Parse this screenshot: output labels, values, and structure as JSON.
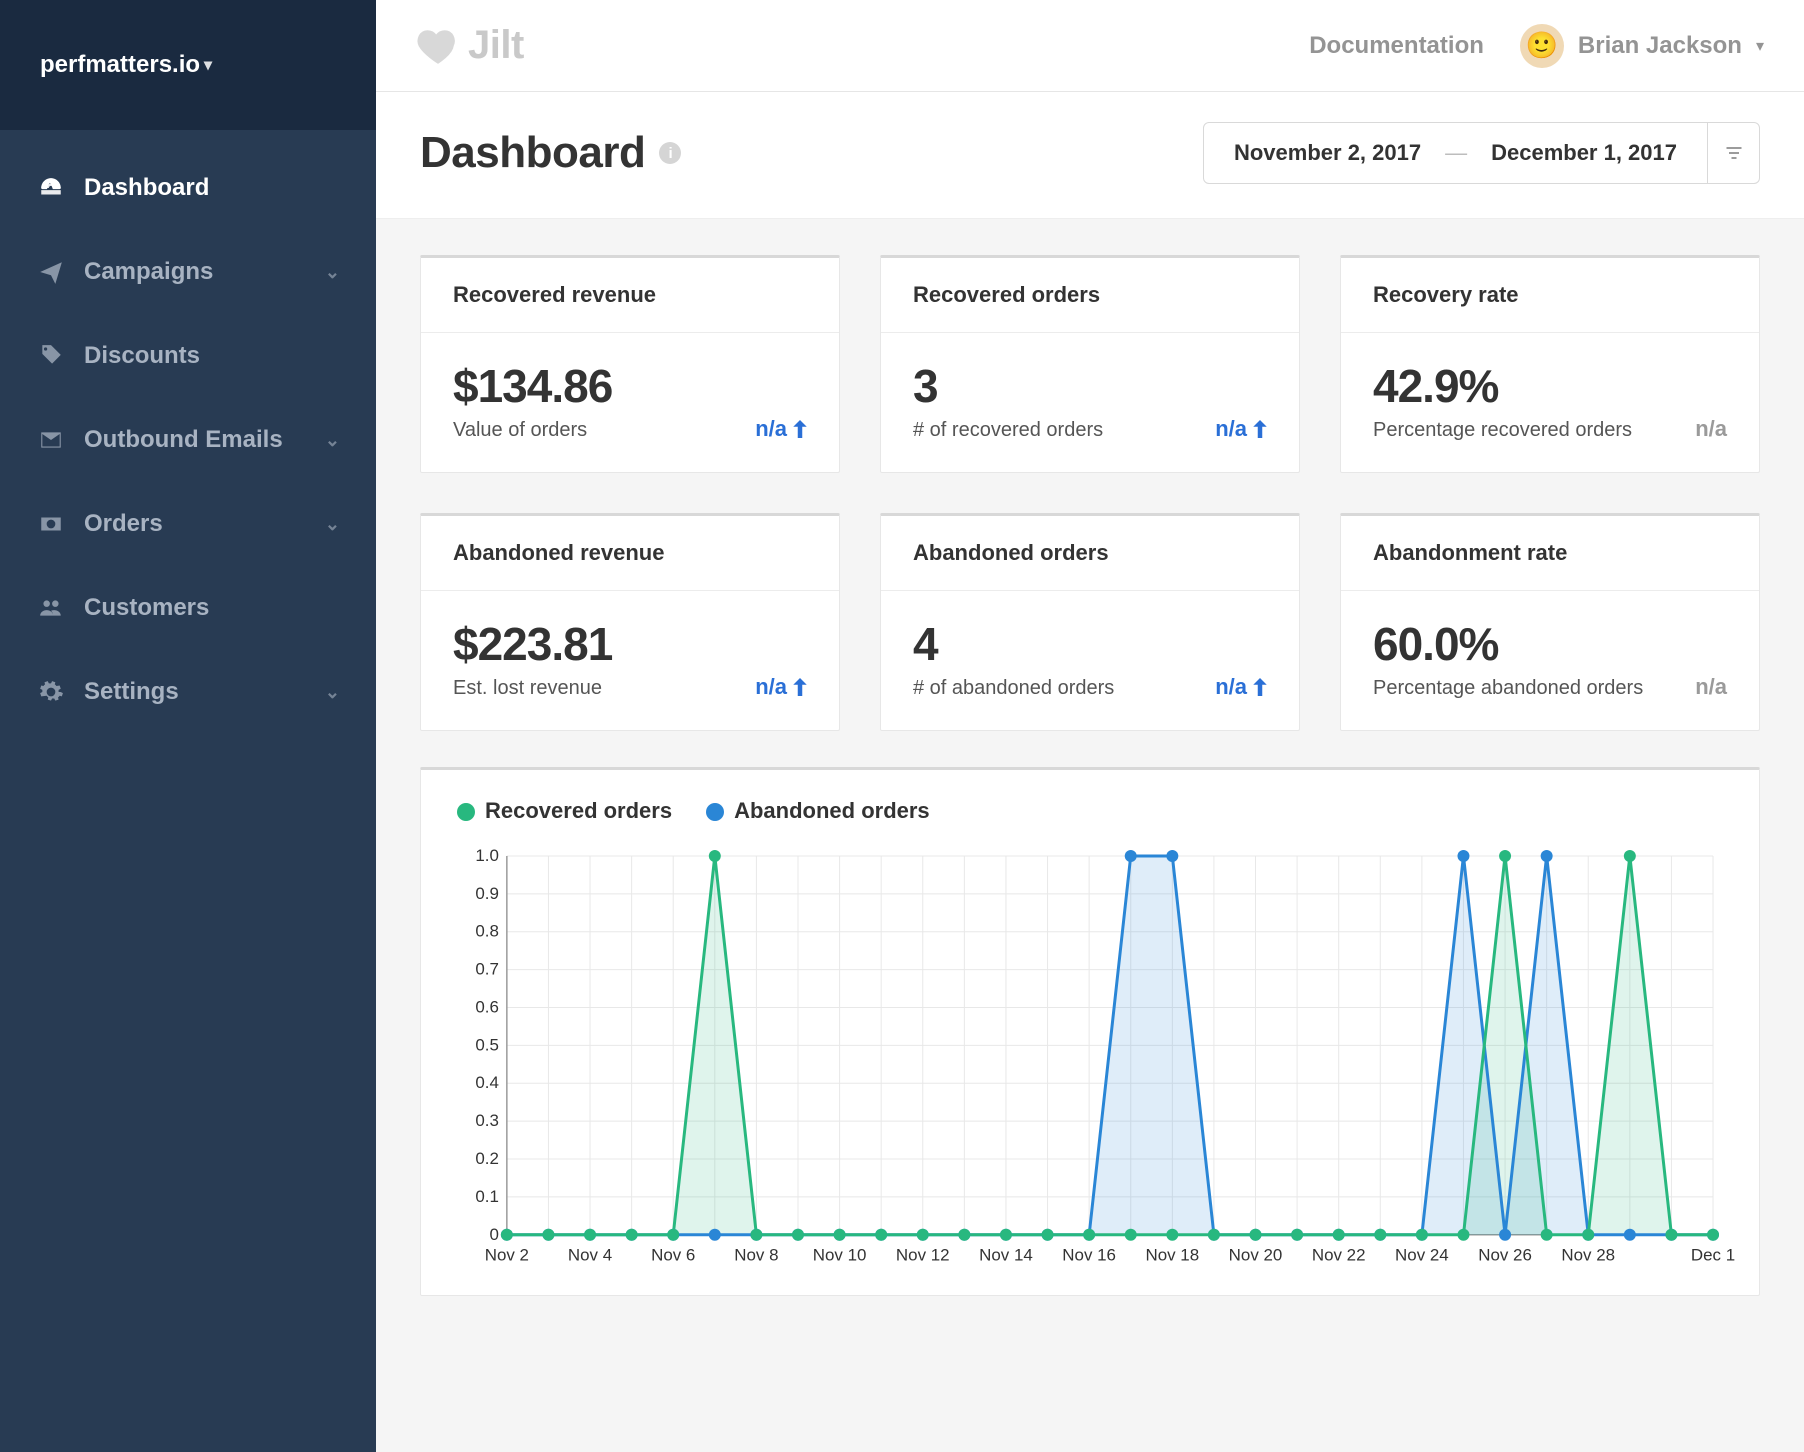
{
  "org": {
    "name": "perfmatters.io"
  },
  "nav": {
    "items": [
      {
        "label": "Dashboard",
        "icon": "dashboard",
        "active": true,
        "expandable": false
      },
      {
        "label": "Campaigns",
        "icon": "plane",
        "active": false,
        "expandable": true
      },
      {
        "label": "Discounts",
        "icon": "tag",
        "active": false,
        "expandable": false
      },
      {
        "label": "Outbound Emails",
        "icon": "mail",
        "active": false,
        "expandable": true
      },
      {
        "label": "Orders",
        "icon": "cash",
        "active": false,
        "expandable": true
      },
      {
        "label": "Customers",
        "icon": "users",
        "active": false,
        "expandable": false
      },
      {
        "label": "Settings",
        "icon": "gear",
        "active": false,
        "expandable": true
      }
    ]
  },
  "topbar": {
    "brand": "Jilt",
    "doc_label": "Documentation",
    "user_name": "Brian Jackson"
  },
  "header": {
    "title": "Dashboard",
    "date_from": "November 2, 2017",
    "date_to": "December 1, 2017"
  },
  "cards": [
    {
      "title": "Recovered revenue",
      "value": "$134.86",
      "sub": "Value of orders",
      "delta": "n/a",
      "arrow": true
    },
    {
      "title": "Recovered orders",
      "value": "3",
      "sub": "# of recovered orders",
      "delta": "n/a",
      "arrow": true
    },
    {
      "title": "Recovery rate",
      "value": "42.9%",
      "sub": "Percentage recovered orders",
      "delta": "n/a",
      "arrow": false
    },
    {
      "title": "Abandoned revenue",
      "value": "$223.81",
      "sub": "Est. lost revenue",
      "delta": "n/a",
      "arrow": true
    },
    {
      "title": "Abandoned orders",
      "value": "4",
      "sub": "# of abandoned orders",
      "delta": "n/a",
      "arrow": true
    },
    {
      "title": "Abandonment rate",
      "value": "60.0%",
      "sub": "Percentage abandoned orders",
      "delta": "n/a",
      "arrow": false
    }
  ],
  "chart": {
    "type": "line",
    "legend": [
      {
        "label": "Recovered orders",
        "color": "#28b87f"
      },
      {
        "label": "Abandoned orders",
        "color": "#2a86d6"
      }
    ],
    "colors": {
      "recovered": "#28b87f",
      "recovered_fill": "rgba(40,184,127,0.15)",
      "abandoned": "#2a86d6",
      "abandoned_fill": "rgba(42,134,214,0.15)",
      "grid": "#e8e8e8",
      "axis": "#9a9a9a",
      "text": "#333333",
      "background": "#ffffff"
    },
    "ylim": [
      0,
      1.0
    ],
    "ytick_step": 0.1,
    "yticks": [
      "0",
      "0.1",
      "0.2",
      "0.3",
      "0.4",
      "0.5",
      "0.6",
      "0.7",
      "0.8",
      "0.9",
      "1.0"
    ],
    "x_labels": [
      "Nov 2",
      "",
      "Nov 4",
      "",
      "Nov 6",
      "",
      "Nov 8",
      "",
      "Nov 10",
      "",
      "Nov 12",
      "",
      "Nov 14",
      "",
      "Nov 16",
      "",
      "Nov 18",
      "",
      "Nov 20",
      "",
      "Nov 22",
      "",
      "Nov 24",
      "",
      "Nov 26",
      "",
      "Nov 28",
      "",
      "",
      "Dec 1"
    ],
    "x_dates": [
      "Nov 2",
      "Nov 3",
      "Nov 4",
      "Nov 5",
      "Nov 6",
      "Nov 7",
      "Nov 8",
      "Nov 9",
      "Nov 10",
      "Nov 11",
      "Nov 12",
      "Nov 13",
      "Nov 14",
      "Nov 15",
      "Nov 16",
      "Nov 17",
      "Nov 18",
      "Nov 19",
      "Nov 20",
      "Nov 21",
      "Nov 22",
      "Nov 23",
      "Nov 24",
      "Nov 25",
      "Nov 26",
      "Nov 27",
      "Nov 28",
      "Nov 29",
      "Nov 30",
      "Dec 1"
    ],
    "series": {
      "recovered": [
        0,
        0,
        0,
        0,
        0,
        1,
        0,
        0,
        0,
        0,
        0,
        0,
        0,
        0,
        0,
        0,
        0,
        0,
        0,
        0,
        0,
        0,
        0,
        0,
        1,
        0,
        0,
        1,
        0,
        0
      ],
      "abandoned": [
        0,
        0,
        0,
        0,
        0,
        0,
        0,
        0,
        0,
        0,
        0,
        0,
        0,
        0,
        0,
        1,
        1,
        0,
        0,
        0,
        0,
        0,
        0,
        1,
        0,
        1,
        0,
        0,
        0,
        0
      ]
    },
    "line_width": 3,
    "marker_radius": 6,
    "label_fontsize": 17
  }
}
